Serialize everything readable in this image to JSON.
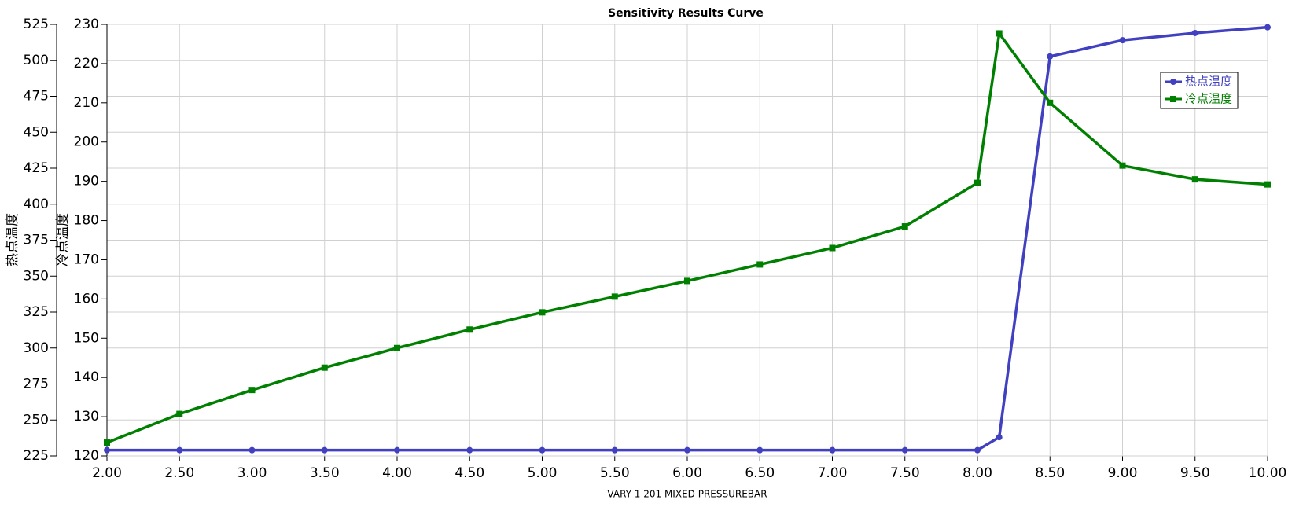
{
  "chart_data": {
    "type": "line",
    "title": "Sensitivity Results Curve",
    "x_label": "VARY   1 201 MIXED PRESSUREBAR",
    "y_label": "热点温度",
    "y2_label": "冷点温度",
    "x": [
      2.0,
      2.5,
      3.0,
      3.5,
      4.0,
      4.5,
      5.0,
      5.5,
      6.0,
      6.5,
      7.0,
      7.5,
      8.0,
      8.15,
      8.5,
      9.0,
      9.5,
      10.0
    ],
    "series": [
      {
        "name": "热点温度",
        "color": "#4040c0",
        "axis": "y",
        "marker": "circle",
        "values": [
          229,
          229,
          229,
          229,
          229,
          229,
          229,
          229,
          229,
          229,
          229,
          229,
          229,
          238,
          502.7,
          514,
          519,
          523
        ]
      },
      {
        "name": "冷点温度",
        "color": "#008000",
        "axis": "y2",
        "marker": "square",
        "values": [
          123.4,
          130.7,
          136.8,
          142.5,
          147.5,
          152.2,
          156.6,
          160.6,
          164.6,
          168.8,
          173,
          178.5,
          189.6,
          227.7,
          210,
          194,
          190.5,
          189.2
        ]
      }
    ],
    "xlim": [
      2,
      10
    ],
    "xticks": [
      {
        "value": 2,
        "label": "2.00"
      },
      {
        "value": 2.5,
        "label": "2.50"
      },
      {
        "value": 3,
        "label": "3.00"
      },
      {
        "value": 3.5,
        "label": "3.50"
      },
      {
        "value": 4,
        "label": "4.00"
      },
      {
        "value": 4.5,
        "label": "4.50"
      },
      {
        "value": 5,
        "label": "5.00"
      },
      {
        "value": 5.5,
        "label": "5.50"
      },
      {
        "value": 6,
        "label": "6.00"
      },
      {
        "value": 6.5,
        "label": "6.50"
      },
      {
        "value": 7,
        "label": "7.00"
      },
      {
        "value": 7.5,
        "label": "7.50"
      },
      {
        "value": 8,
        "label": "8.00"
      },
      {
        "value": 8.5,
        "label": "8.50"
      },
      {
        "value": 9,
        "label": "9.00"
      },
      {
        "value": 9.5,
        "label": "9.50"
      },
      {
        "value": 10,
        "label": "10.00"
      }
    ],
    "ylim": [
      225,
      525
    ],
    "yticks": [
      225,
      250,
      275,
      300,
      325,
      350,
      375,
      400,
      425,
      450,
      475,
      500,
      525
    ],
    "y2lim": [
      120,
      230
    ],
    "y2ticks": [
      120,
      130,
      140,
      150,
      160,
      170,
      180,
      190,
      200,
      210,
      220,
      230
    ],
    "grid": true,
    "legend": "upper right"
  }
}
